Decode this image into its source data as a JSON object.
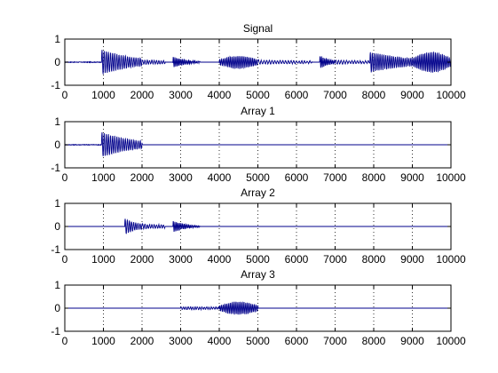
{
  "chart_data": [
    {
      "type": "line",
      "title": "Signal",
      "xlim": [
        0,
        10000
      ],
      "ylim": [
        -1,
        1
      ],
      "x_ticks": [
        "0",
        "1000",
        "2000",
        "3000",
        "4000",
        "5000",
        "6000",
        "7000",
        "8000",
        "9000",
        "10000"
      ],
      "y_ticks": [
        "1",
        "0",
        "-1"
      ],
      "grid": "vertical dotted",
      "line_color": "#00008b",
      "series": [
        {
          "segments": [
            {
              "x0": 0,
              "x1": 950,
              "amp": 0.03,
              "wave": 0,
              "decay": 0
            },
            {
              "x0": 950,
              "x1": 2000,
              "amp": 0.55,
              "wave": 55,
              "decay": 1.2
            },
            {
              "x0": 2000,
              "x1": 2600,
              "amp": 0.1,
              "wave": 60,
              "decay": 0.5
            },
            {
              "x0": 2800,
              "x1": 3500,
              "amp": 0.25,
              "wave": 40,
              "decay": 2.0
            },
            {
              "x0": 4000,
              "x1": 5000,
              "amp": 0.28,
              "wave": 45,
              "decay": -0.6
            },
            {
              "x0": 5000,
              "x1": 6400,
              "amp": 0.08,
              "wave": 70,
              "decay": 0.5
            },
            {
              "x0": 6600,
              "x1": 7000,
              "amp": 0.3,
              "wave": 40,
              "decay": 1.5
            },
            {
              "x0": 7000,
              "x1": 7900,
              "amp": 0.08,
              "wave": 70,
              "decay": 0.5
            },
            {
              "x0": 7900,
              "x1": 9000,
              "amp": 0.45,
              "wave": 50,
              "decay": 1.0
            },
            {
              "x0": 9000,
              "x1": 10000,
              "amp": 0.45,
              "wave": 45,
              "decay": -0.5
            }
          ]
        }
      ]
    },
    {
      "type": "line",
      "title": "Array 1",
      "xlim": [
        0,
        10000
      ],
      "ylim": [
        -1,
        1
      ],
      "x_ticks": [
        "0",
        "1000",
        "2000",
        "3000",
        "4000",
        "5000",
        "6000",
        "7000",
        "8000",
        "9000",
        "10000"
      ],
      "y_ticks": [
        "1",
        "0",
        "-1"
      ],
      "grid": "vertical dotted",
      "line_color": "#00008b",
      "series": [
        {
          "segments": [
            {
              "x0": 0,
              "x1": 950,
              "amp": 0.03,
              "wave": 0,
              "decay": 0
            },
            {
              "x0": 950,
              "x1": 2000,
              "amp": 0.55,
              "wave": 55,
              "decay": 1.2
            }
          ]
        }
      ]
    },
    {
      "type": "line",
      "title": "Array 2",
      "xlim": [
        0,
        10000
      ],
      "ylim": [
        -1,
        1
      ],
      "x_ticks": [
        "0",
        "1000",
        "2000",
        "3000",
        "4000",
        "5000",
        "6000",
        "7000",
        "8000",
        "9000",
        "10000"
      ],
      "y_ticks": [
        "1",
        "0",
        "-1"
      ],
      "grid": "vertical dotted",
      "line_color": "#00008b",
      "series": [
        {
          "segments": [
            {
              "x0": 1550,
              "x1": 2000,
              "amp": 0.35,
              "wave": 55,
              "decay": 1.2
            },
            {
              "x0": 2000,
              "x1": 2600,
              "amp": 0.1,
              "wave": 60,
              "decay": 0.5
            },
            {
              "x0": 2800,
              "x1": 3500,
              "amp": 0.25,
              "wave": 40,
              "decay": 2.0
            }
          ]
        }
      ]
    },
    {
      "type": "line",
      "title": "Array 3",
      "xlim": [
        0,
        10000
      ],
      "ylim": [
        -1,
        1
      ],
      "x_ticks": [
        "0",
        "1000",
        "2000",
        "3000",
        "4000",
        "5000",
        "6000",
        "7000",
        "8000",
        "9000",
        "10000"
      ],
      "y_ticks": [
        "1",
        "0",
        "-1"
      ],
      "grid": "vertical dotted",
      "line_color": "#00008b",
      "series": [
        {
          "segments": [
            {
              "x0": 3000,
              "x1": 4000,
              "amp": 0.06,
              "wave": 60,
              "decay": 0.5
            },
            {
              "x0": 4000,
              "x1": 5000,
              "amp": 0.28,
              "wave": 45,
              "decay": -0.6
            }
          ]
        }
      ]
    }
  ]
}
